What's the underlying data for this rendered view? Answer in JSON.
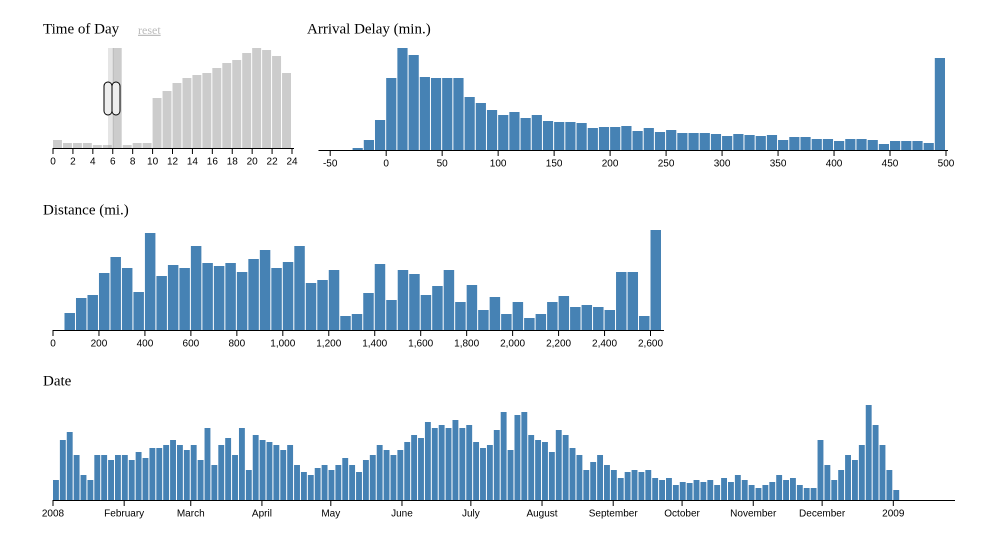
{
  "chart_data": [
    {
      "type": "histogram",
      "title": "Time of Day",
      "reset_label": "reset",
      "color": "#cccccc",
      "bins": [
        0,
        1,
        2,
        3,
        4,
        5,
        6,
        7,
        8,
        9,
        10,
        11,
        12,
        13,
        14,
        15,
        16,
        17,
        18,
        19,
        20,
        21,
        22,
        23,
        24
      ],
      "values": [
        8,
        5,
        5,
        5,
        3,
        3,
        100,
        3,
        5,
        5,
        50,
        57,
        65,
        70,
        73,
        75,
        80,
        85,
        88,
        95,
        100,
        98,
        92,
        75
      ],
      "xlim": [
        0,
        24
      ],
      "xticks": [
        0,
        2,
        4,
        6,
        8,
        10,
        12,
        14,
        16,
        18,
        20,
        22,
        24
      ]
    },
    {
      "type": "histogram",
      "title": "Arrival Delay (min.)",
      "color": "#4682b4",
      "bins": [
        -60,
        -50,
        -40,
        -30,
        -20,
        -10,
        0,
        10,
        20,
        30,
        40,
        50,
        60,
        70,
        80,
        90,
        100,
        110,
        120,
        130,
        140,
        150,
        160,
        170,
        180,
        190,
        200,
        210,
        220,
        230,
        240,
        250,
        260,
        270,
        280,
        290,
        300,
        310,
        320,
        330,
        340,
        350,
        360,
        370,
        380,
        390,
        400,
        410,
        420,
        430,
        440,
        450,
        460,
        470,
        480,
        490,
        500
      ],
      "values": [
        0,
        0,
        0,
        2,
        10,
        30,
        72,
        102,
        95,
        73,
        72,
        72,
        72,
        53,
        47,
        40,
        35,
        38,
        32,
        35,
        29,
        28,
        28,
        27,
        22,
        23,
        23,
        24,
        19,
        22,
        18,
        20,
        17,
        17,
        17,
        16,
        14,
        16,
        15,
        14,
        15,
        10,
        13,
        13,
        11,
        11,
        9,
        11,
        11,
        10,
        6,
        9,
        9,
        9,
        7,
        92
      ],
      "xlim": [
        -60,
        500
      ],
      "xticks": [
        -50,
        0,
        50,
        100,
        150,
        200,
        250,
        300,
        350,
        400,
        450,
        500
      ]
    },
    {
      "type": "histogram",
      "title": "Distance (mi.)",
      "color": "#4682b4",
      "bins": [
        0,
        50,
        100,
        150,
        200,
        250,
        300,
        350,
        400,
        450,
        500,
        550,
        600,
        650,
        700,
        750,
        800,
        850,
        900,
        950,
        1000,
        1050,
        1100,
        1150,
        1200,
        1250,
        1300,
        1350,
        1400,
        1450,
        1500,
        1550,
        1600,
        1650,
        1700,
        1750,
        1800,
        1850,
        1900,
        1950,
        2000,
        2050,
        2100,
        2150,
        2200,
        2250,
        2300,
        2350,
        2400,
        2450,
        2500,
        2550,
        2600,
        2650
      ],
      "values": [
        0,
        17,
        32,
        35,
        57,
        73,
        62,
        38,
        97,
        54,
        65,
        62,
        84,
        67,
        64,
        67,
        58,
        71,
        80,
        62,
        68,
        84,
        47,
        50,
        60,
        14,
        16,
        37,
        66,
        30,
        60,
        56,
        35,
        44,
        60,
        28,
        45,
        20,
        33,
        16,
        28,
        12,
        16,
        28,
        34,
        23,
        25,
        23,
        20,
        58,
        58,
        14,
        100
      ],
      "xlim": [
        0,
        2650
      ],
      "xticks": [
        0,
        200,
        400,
        600,
        800,
        {
          "value": 1000,
          "label": "1,000"
        },
        {
          "value": 1200,
          "label": "1,200"
        },
        {
          "value": 1400,
          "label": "1,400"
        },
        {
          "value": 1600,
          "label": "1,600"
        },
        {
          "value": 1800,
          "label": "1,800"
        },
        {
          "value": 2000,
          "label": "2,000"
        },
        {
          "value": 2200,
          "label": "2,200"
        },
        {
          "value": 2400,
          "label": "2,400"
        },
        {
          "value": 2600,
          "label": "2,600"
        }
      ]
    },
    {
      "type": "histogram",
      "title": "Date",
      "color": "#4682b4",
      "bins": [
        0,
        3,
        6,
        9,
        12,
        15,
        18,
        21,
        24,
        27,
        30,
        33,
        36,
        39,
        42,
        45,
        48,
        51,
        54,
        57,
        60,
        63,
        66,
        69,
        72,
        75,
        78,
        81,
        84,
        87,
        90,
        93,
        96,
        99,
        102,
        105,
        108,
        111,
        114,
        117,
        120,
        123,
        126,
        129,
        132,
        135,
        138,
        141,
        144,
        147,
        150,
        153,
        156,
        159,
        162,
        165,
        168,
        171,
        174,
        177,
        180,
        183,
        186,
        189,
        192,
        195,
        198,
        201,
        204,
        207,
        210,
        213,
        216,
        219,
        222,
        225,
        228,
        231,
        234,
        237,
        240,
        243,
        246,
        249,
        252,
        255,
        258,
        261,
        264,
        267,
        270,
        273,
        276,
        279,
        282,
        285,
        288,
        291,
        294,
        297,
        300,
        303,
        306,
        309,
        312,
        315,
        318,
        321,
        324,
        327,
        330,
        333,
        336,
        339,
        342,
        345,
        348,
        351,
        354,
        357,
        360,
        363,
        366,
        369
      ],
      "values": [
        20,
        60,
        68,
        45,
        25,
        20,
        45,
        45,
        40,
        45,
        45,
        40,
        48,
        42,
        52,
        52,
        55,
        60,
        55,
        50,
        55,
        40,
        72,
        35,
        55,
        62,
        45,
        72,
        30,
        65,
        60,
        58,
        55,
        50,
        55,
        35,
        28,
        25,
        32,
        35,
        30,
        35,
        42,
        35,
        28,
        40,
        45,
        55,
        50,
        45,
        50,
        58,
        65,
        62,
        78,
        72,
        75,
        72,
        80,
        72,
        75,
        58,
        52,
        55,
        70,
        88,
        50,
        85,
        88,
        65,
        60,
        58,
        48,
        70,
        65,
        52,
        45,
        30,
        38,
        45,
        35,
        30,
        22,
        28,
        30,
        28,
        30,
        22,
        20,
        22,
        15,
        18,
        17,
        20,
        18,
        20,
        15,
        22,
        18,
        25,
        20,
        15,
        12,
        15,
        18,
        25,
        20,
        22,
        15,
        12,
        12,
        60,
        35,
        20,
        30,
        45,
        40,
        55,
        95,
        75,
        55,
        30,
        10
      ],
      "xlim": [
        0,
        392
      ],
      "xticks": [
        {
          "value": 0,
          "label": "2008"
        },
        {
          "value": 31,
          "label": "February"
        },
        {
          "value": 60,
          "label": "March"
        },
        {
          "value": 91,
          "label": "April"
        },
        {
          "value": 121,
          "label": "May"
        },
        {
          "value": 152,
          "label": "June"
        },
        {
          "value": 182,
          "label": "July"
        },
        {
          "value": 213,
          "label": "August"
        },
        {
          "value": 244,
          "label": "September"
        },
        {
          "value": 274,
          "label": "October"
        },
        {
          "value": 305,
          "label": "November"
        },
        {
          "value": 335,
          "label": "December"
        },
        {
          "value": 366,
          "label": "2009"
        }
      ]
    }
  ]
}
